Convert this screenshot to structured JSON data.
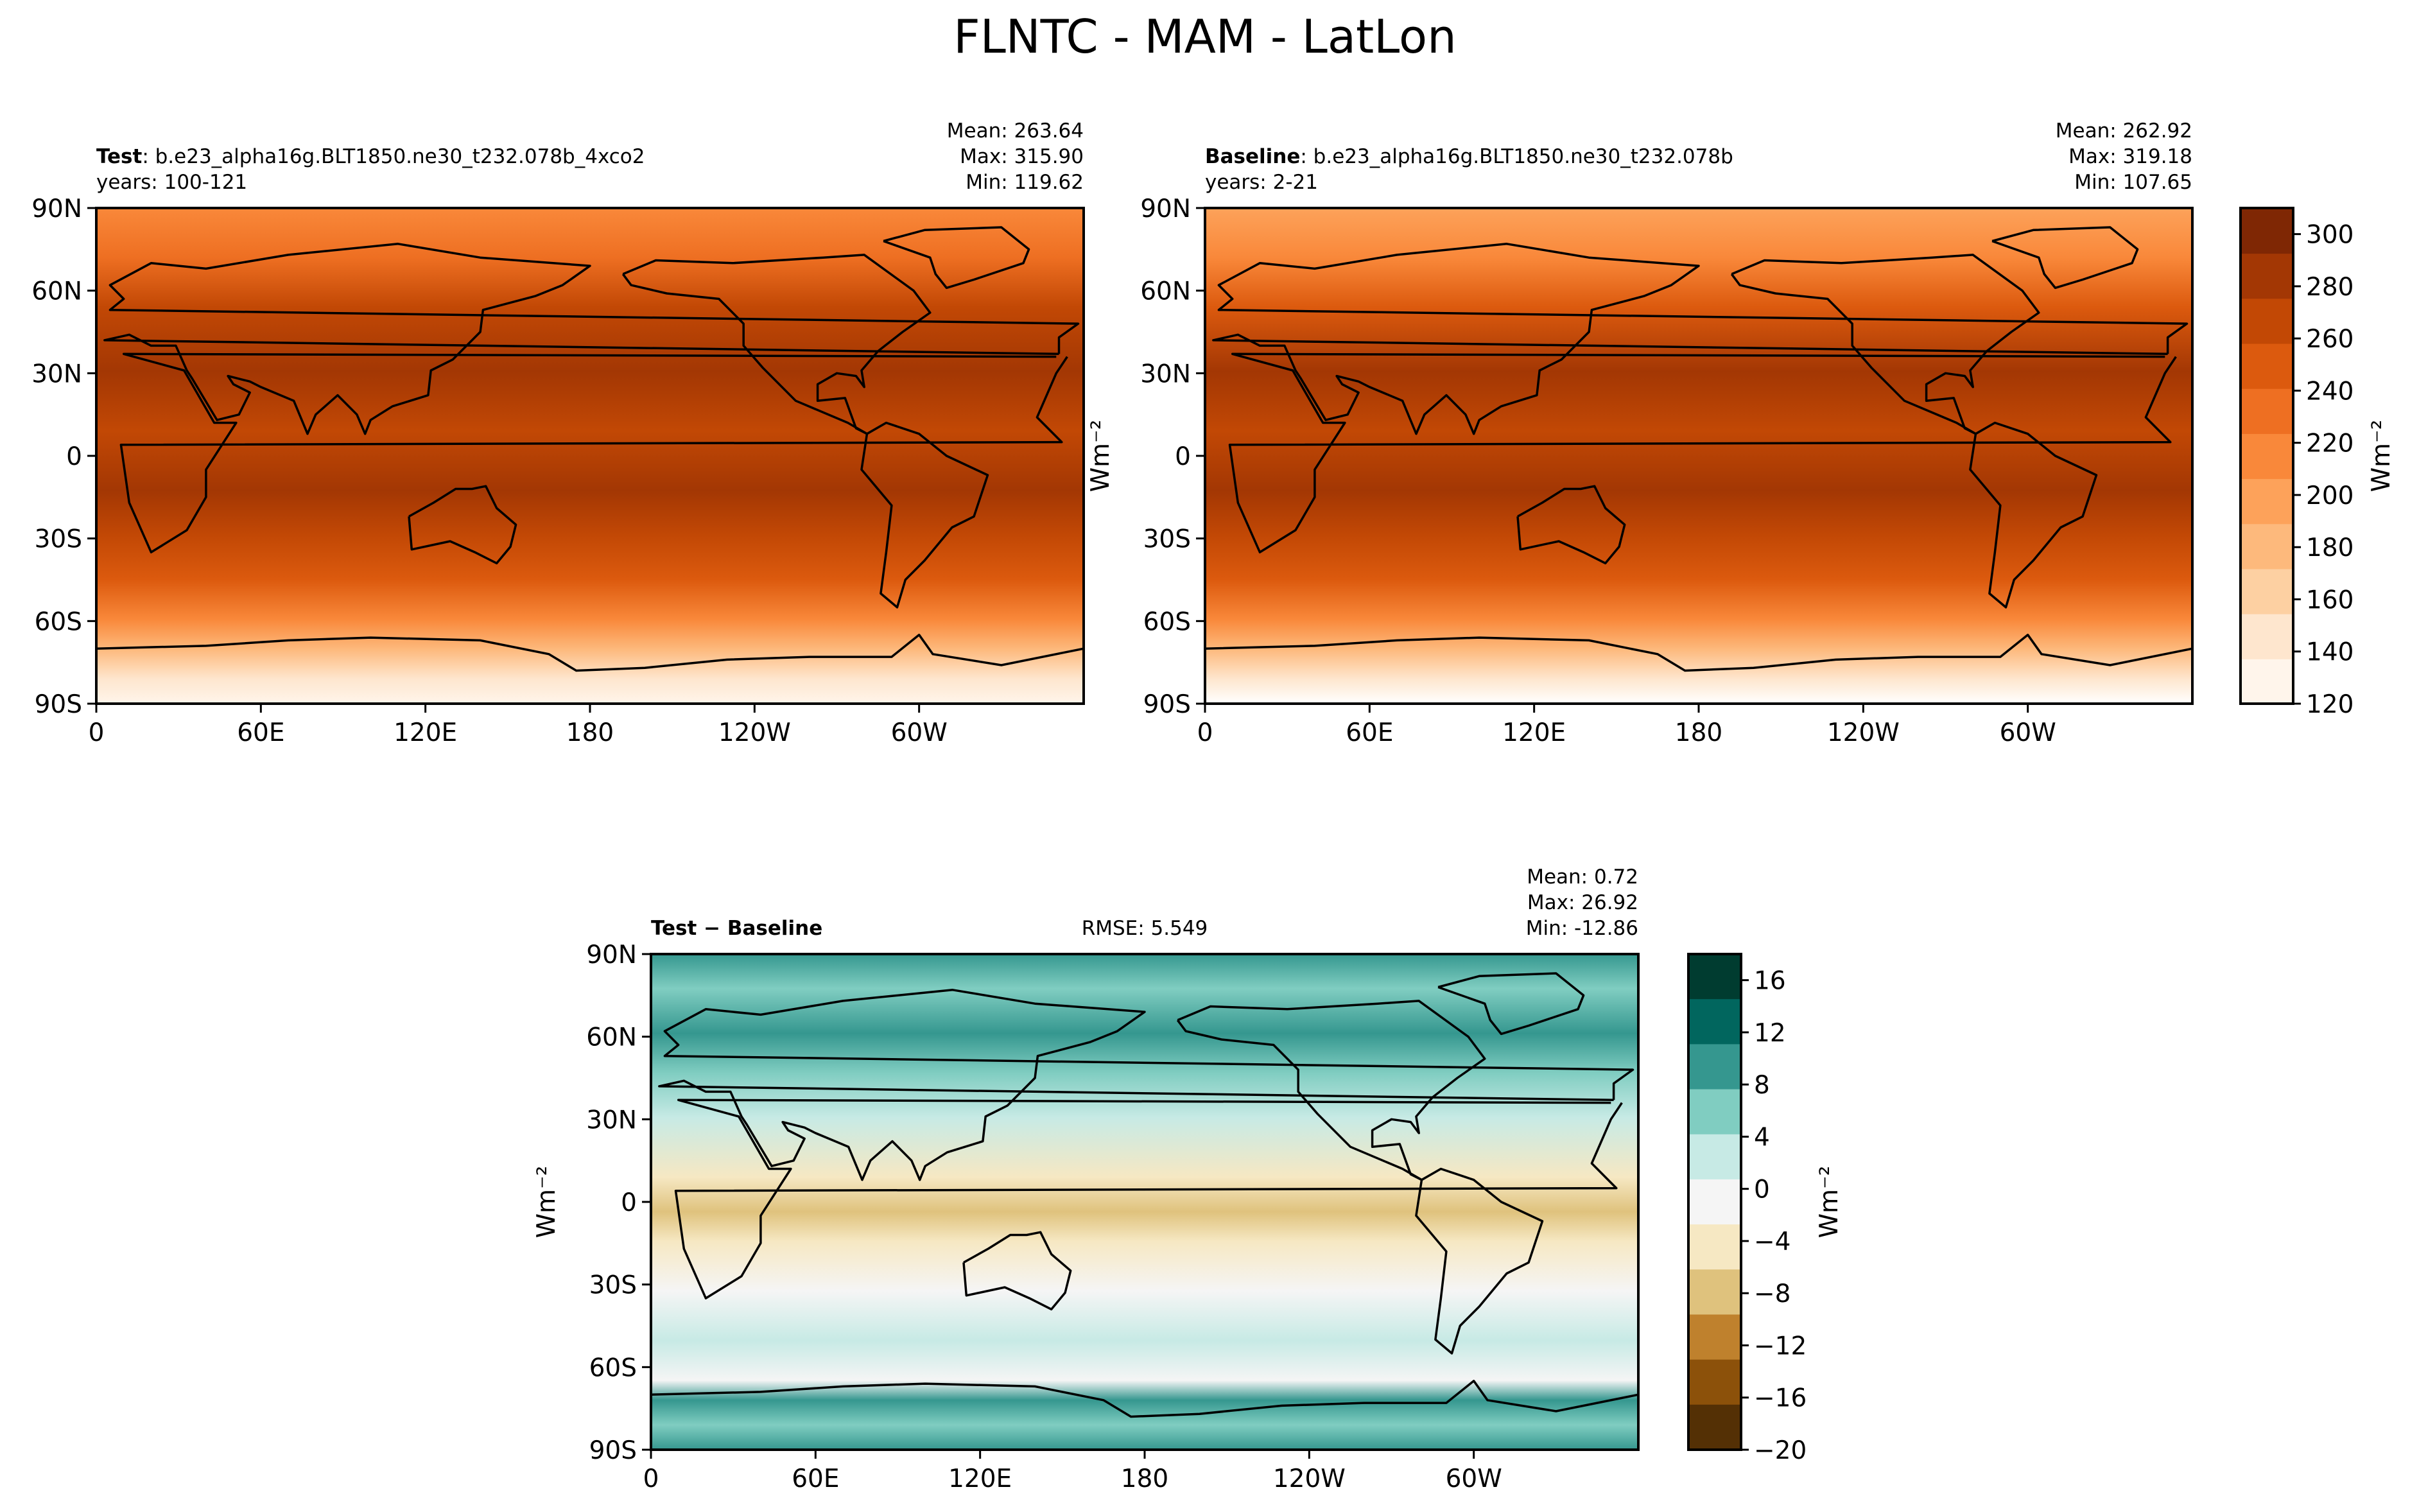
{
  "title": "FLNTC - MAM - LatLon",
  "chart_data": [
    {
      "type": "heatmap",
      "panel": "test",
      "label_bold": "Test",
      "label_rest": ": b.e23_alpha16g.BLT1850.ne30_t232.078b_4xco2",
      "years": "years: 100-121",
      "stats": [
        "Mean: 263.64",
        "Max: 315.90",
        "Min: 119.62"
      ],
      "xticks": [
        "0",
        "60E",
        "120E",
        "180",
        "120W",
        "60W"
      ],
      "yticks": [
        "90N",
        "60N",
        "30N",
        "0",
        "30S",
        "60S",
        "90S"
      ],
      "xlim": [
        0,
        360
      ],
      "ylim": [
        -90,
        90
      ],
      "colormap": "Oranges"
    },
    {
      "type": "heatmap",
      "panel": "baseline",
      "label_bold": "Baseline",
      "label_rest": ": b.e23_alpha16g.BLT1850.ne30_t232.078b",
      "years": "years: 2-21",
      "stats": [
        "Mean: 262.92",
        "Max: 319.18",
        "Min: 107.65"
      ],
      "xticks": [
        "0",
        "60E",
        "120E",
        "180",
        "120W",
        "60W"
      ],
      "yticks": [
        "90N",
        "60N",
        "30N",
        "0",
        "30S",
        "60S",
        "90S"
      ],
      "xlim": [
        0,
        360
      ],
      "ylim": [
        -90,
        90
      ],
      "colormap": "Oranges",
      "ylabel": "Wm⁻²",
      "colorbar": {
        "ticks": [
          "120",
          "140",
          "160",
          "180",
          "200",
          "220",
          "240",
          "260",
          "280",
          "300"
        ],
        "range": [
          120,
          310
        ],
        "label": "Wm⁻²",
        "colors": [
          "#fff5eb",
          "#fee6ce",
          "#fdd0a2",
          "#fdb97c",
          "#fda25a",
          "#f9883a",
          "#ee6f22",
          "#dc5a0e",
          "#c24805",
          "#a33704",
          "#7f2704"
        ]
      }
    },
    {
      "type": "heatmap",
      "panel": "difference",
      "label": "Test − Baseline",
      "rmse": "RMSE: 5.549",
      "stats": [
        "Mean:  0.72",
        "Max: 26.92",
        "Min: -12.86"
      ],
      "xticks": [
        "0",
        "60E",
        "120E",
        "180",
        "120W",
        "60W"
      ],
      "yticks": [
        "90N",
        "60N",
        "30N",
        "0",
        "30S",
        "60S",
        "90S"
      ],
      "xlim": [
        0,
        360
      ],
      "ylim": [
        -90,
        90
      ],
      "colormap": "BrBG",
      "ylabel": "Wm⁻²",
      "colorbar": {
        "ticks": [
          "16",
          "12",
          "8",
          "4",
          "0",
          "−4",
          "−8",
          "−12",
          "−16",
          "−20"
        ],
        "range": [
          -20,
          18
        ],
        "label": "Wm⁻²",
        "colors": [
          "#003c30",
          "#01665e",
          "#35978f",
          "#80cdc1",
          "#c7eae5",
          "#f5f5f5",
          "#f6e8c3",
          "#dfc27d",
          "#bf812d",
          "#8c510a",
          "#543005"
        ]
      }
    }
  ]
}
